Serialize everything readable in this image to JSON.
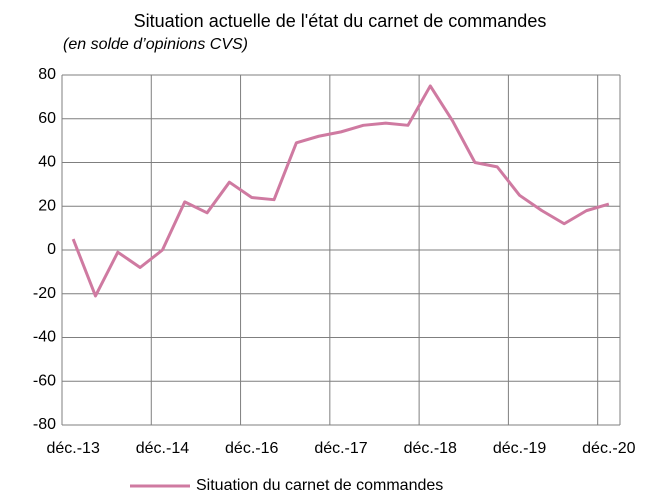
{
  "chart_data": {
    "type": "line",
    "title": "Situation actuelle de l'état du carnet de commandes",
    "subtitle": "(en solde d’opinions CVS)",
    "categories": [
      "déc.-13",
      null,
      null,
      null,
      "déc.-14",
      null,
      null,
      null,
      "déc.-16",
      null,
      null,
      null,
      "déc.-17",
      null,
      null,
      null,
      "déc.-18",
      null,
      null,
      null,
      "déc.-19",
      null,
      null,
      null,
      "déc.-20"
    ],
    "series": [
      {
        "name": "Situation du carnet de commandes",
        "color": "#cf7aa1",
        "values": [
          5,
          -21,
          -1,
          -8,
          0,
          22,
          17,
          31,
          24,
          23,
          49,
          52,
          54,
          57,
          58,
          57,
          75,
          59,
          40,
          38,
          25,
          18,
          12,
          18,
          21
        ]
      }
    ],
    "ylim": [
      -80,
      80
    ],
    "yticks": [
      -80,
      -60,
      -40,
      -20,
      0,
      20,
      40,
      60,
      80
    ],
    "grid": true,
    "legend": "bottom"
  }
}
